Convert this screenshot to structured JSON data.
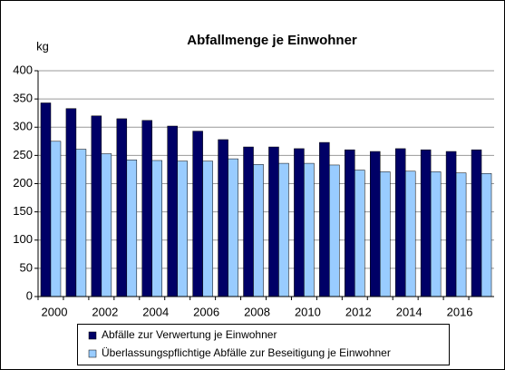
{
  "chart_data": {
    "type": "bar",
    "title": "Abfallmenge je Einwohner",
    "y_label": "kg",
    "categories": [
      "2000",
      null,
      "2002",
      null,
      "2004",
      null,
      "2006",
      null,
      "2008",
      null,
      "2010",
      null,
      "2012",
      null,
      "2014",
      null,
      "2016",
      null
    ],
    "series": [
      {
        "name": "Abfälle zur Verwertung je Einwohner",
        "color": "#000066",
        "values": [
          343,
          333,
          320,
          315,
          312,
          302,
          293,
          278,
          265,
          265,
          262,
          273,
          260,
          257,
          262,
          260,
          257,
          260
        ]
      },
      {
        "name": "Überlassungspflichtige Abfälle zur Beseitigung je Einwohner",
        "color": "#99ccff",
        "values": [
          275,
          261,
          253,
          242,
          241,
          240,
          240,
          244,
          234,
          236,
          236,
          233,
          224,
          221,
          222,
          221,
          219,
          218
        ]
      }
    ],
    "ylim": [
      0,
      400
    ],
    "yticks": [
      0,
      50,
      100,
      150,
      200,
      250,
      300,
      350,
      400
    ],
    "grid": true,
    "legend": "bottom"
  }
}
